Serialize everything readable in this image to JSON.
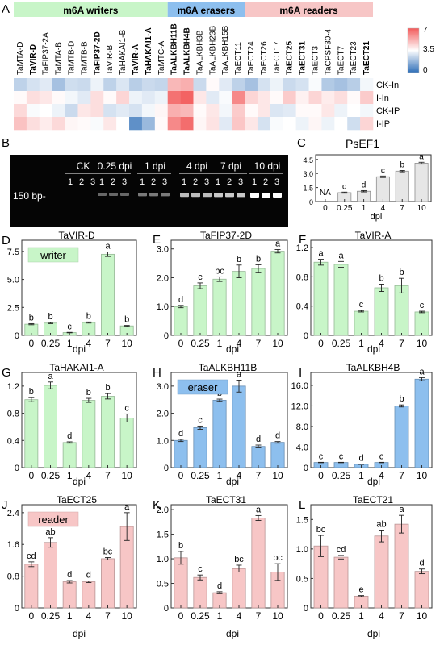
{
  "colors": {
    "writer": "#c8f5c8",
    "eraser": "#8dbfee",
    "reader": "#f7c6c6",
    "neutral": "#e6e6e6",
    "heat_low": "#2f6fb8",
    "heat_mid": "#ffffff",
    "heat_high": "#f25a5a"
  },
  "heatmap": {
    "panel_label": "A",
    "groups": [
      {
        "label": "m6A writers",
        "kind": "writer",
        "start": 0,
        "end": 12
      },
      {
        "label": "m6A erasers",
        "kind": "eraser",
        "start": 12,
        "end": 18
      },
      {
        "label": "m6A readers",
        "kind": "reader",
        "start": 18,
        "end": 28
      }
    ],
    "columns": [
      {
        "name": "TaMTA-D",
        "bold": false
      },
      {
        "name": "TaVIR-D",
        "bold": true
      },
      {
        "name": "TaFIP37-2A",
        "bold": false
      },
      {
        "name": "TaMTA-B",
        "bold": false
      },
      {
        "name": "TaMTB-D",
        "bold": false
      },
      {
        "name": "TaMTB-B",
        "bold": false
      },
      {
        "name": "TaFIP37-2D",
        "bold": true
      },
      {
        "name": "TaVIR-B",
        "bold": false
      },
      {
        "name": "TaHAKAI1-B",
        "bold": false
      },
      {
        "name": "TaVIR-A",
        "bold": true
      },
      {
        "name": "TaHAKAI1-A",
        "bold": true
      },
      {
        "name": "TaMTC-A",
        "bold": false
      },
      {
        "name": "TaALKBH11B",
        "bold": true
      },
      {
        "name": "TaALKBH4B",
        "bold": true
      },
      {
        "name": "TaALKBH3B",
        "bold": false
      },
      {
        "name": "TaALKBH23B",
        "bold": false
      },
      {
        "name": "TaALKBH15B",
        "bold": false
      },
      {
        "name": "TaECT11",
        "bold": false
      },
      {
        "name": "TaECT24",
        "bold": false
      },
      {
        "name": "TaECT26",
        "bold": false
      },
      {
        "name": "TaECT17",
        "bold": false
      },
      {
        "name": "TaECT25",
        "bold": true
      },
      {
        "name": "TaECT31",
        "bold": true
      },
      {
        "name": "TaECT3",
        "bold": false
      },
      {
        "name": "TaCPSF30-4",
        "bold": false
      },
      {
        "name": "TaECT7",
        "bold": false
      },
      {
        "name": "TaECT23",
        "bold": false
      },
      {
        "name": "TaECT21",
        "bold": true
      }
    ],
    "rows": [
      "CK-In",
      "I-In",
      "CK-IP",
      "I-IP"
    ],
    "values": [
      [
        2.4,
        2.8,
        3.0,
        2.0,
        2.7,
        2.6,
        3.2,
        2.4,
        2.9,
        2.3,
        2.6,
        2.5,
        5.0,
        5.2,
        2.6,
        3.6,
        3.0,
        2.4,
        2.0,
        2.8,
        3.2,
        2.6,
        2.8,
        3.4,
        2.2,
        2.0,
        2.3,
        3.3
      ],
      [
        3.6,
        4.2,
        4.0,
        3.6,
        3.3,
        3.0,
        4.2,
        3.6,
        4.4,
        3.2,
        3.0,
        3.2,
        6.5,
        6.8,
        4.0,
        3.0,
        3.4,
        6.0,
        4.4,
        4.0,
        3.6,
        4.6,
        3.8,
        4.4,
        3.9,
        4.2,
        3.6,
        4.6
      ],
      [
        4.3,
        3.4,
        3.5,
        3.2,
        2.6,
        4.0,
        4.2,
        2.8,
        3.0,
        2.8,
        3.3,
        3.7,
        5.2,
        5.0,
        3.6,
        4.0,
        3.3,
        4.6,
        3.6,
        4.0,
        2.9,
        3.0,
        3.6,
        3.6,
        4.0,
        3.2,
        3.5,
        3.3
      ],
      [
        4.8,
        4.2,
        3.9,
        4.3,
        3.7,
        3.6,
        3.4,
        4.0,
        3.5,
        0.8,
        1.8,
        3.6,
        6.0,
        6.6,
        3.7,
        4.1,
        3.0,
        4.7,
        4.0,
        2.8,
        3.4,
        3.5,
        3.2,
        3.7,
        3.2,
        3.5,
        2.7,
        4.4
      ]
    ],
    "scale": {
      "min": 0,
      "mid": 3.5,
      "max": 7,
      "ticks": [
        "7",
        "3.5",
        "0"
      ]
    }
  },
  "gel": {
    "panel_label": "B",
    "groups": [
      {
        "label": "CK",
        "lanes": [
          "1",
          "2",
          "3"
        ],
        "intensity": 0.0
      },
      {
        "label": "0.25 dpi",
        "lanes": [
          "1",
          "2",
          "3"
        ],
        "intensity": 0.35
      },
      {
        "label": "1 dpi",
        "lanes": [
          "1",
          "2",
          "3"
        ],
        "intensity": 0.45
      },
      {
        "label": "4 dpi",
        "lanes": [
          "1",
          "2",
          "3"
        ],
        "intensity": 0.75
      },
      {
        "label": "7 dpi",
        "lanes": [
          "1",
          "2",
          "3"
        ],
        "intensity": 0.8
      },
      {
        "label": "10 dpi",
        "lanes": [
          "1",
          "2",
          "3"
        ],
        "intensity": 1.0
      }
    ],
    "marker_label": "150 bp-"
  },
  "chart_data": [
    {
      "panel": "C",
      "type": "bar",
      "title": "PsEF1",
      "xlabel": "dpi",
      "categories": [
        "0",
        "0.25",
        "1",
        "4",
        "7",
        "10"
      ],
      "values": [
        0,
        0.95,
        1.1,
        2.65,
        3.25,
        4.1
      ],
      "errors": [
        0,
        0.06,
        0.07,
        0.08,
        0.07,
        0.1
      ],
      "letters": [
        "NA",
        "d",
        "d",
        "c",
        "b",
        "a"
      ],
      "ylim": [
        0,
        5
      ],
      "yticks": [
        "0",
        "1.5",
        "3.0",
        "4.5"
      ],
      "ytick_values": [
        0,
        1.5,
        3.0,
        4.5
      ],
      "color": "neutral",
      "tag": ""
    },
    {
      "panel": "D",
      "type": "bar",
      "title": "TaVIR-D",
      "xlabel": "dpi",
      "categories": [
        "0",
        "0.25",
        "1",
        "4",
        "7",
        "10"
      ],
      "values": [
        1.0,
        1.1,
        0.25,
        1.15,
        7.25,
        0.85
      ],
      "errors": [
        0.05,
        0.05,
        0.02,
        0.05,
        0.2,
        0.04
      ],
      "letters": [
        "b",
        "b",
        "c",
        "b",
        "a",
        "b"
      ],
      "ylim": [
        0,
        8.5
      ],
      "yticks": [
        "0",
        "2.5",
        "5.0",
        "7.5"
      ],
      "ytick_values": [
        0,
        2.5,
        5.0,
        7.5
      ],
      "color": "writer",
      "tag": "writer"
    },
    {
      "panel": "E",
      "type": "bar",
      "title": "TaFIP37-2D",
      "xlabel": "dpi",
      "categories": [
        "0",
        "0.25",
        "1",
        "4",
        "7",
        "10"
      ],
      "values": [
        1.0,
        1.72,
        1.95,
        2.22,
        2.32,
        2.92
      ],
      "errors": [
        0.04,
        0.1,
        0.08,
        0.22,
        0.13,
        0.06
      ],
      "letters": [
        "d",
        "c",
        "bc",
        "b",
        "b",
        "a"
      ],
      "ylim": [
        0,
        3.3
      ],
      "yticks": [
        "0",
        "1.0",
        "2.0",
        "3.0"
      ],
      "ytick_values": [
        0,
        1.0,
        2.0,
        3.0
      ],
      "color": "writer",
      "tag": ""
    },
    {
      "panel": "F",
      "type": "bar",
      "title": "TaVIR-A",
      "xlabel": "dpi",
      "categories": [
        "0",
        "0.25",
        "1",
        "4",
        "7",
        "10"
      ],
      "values": [
        1.0,
        0.97,
        0.33,
        0.65,
        0.68,
        0.32
      ],
      "errors": [
        0.04,
        0.04,
        0.01,
        0.05,
        0.1,
        0.01
      ],
      "letters": [
        "a",
        "a",
        "c",
        "b",
        "b",
        "c"
      ],
      "ylim": [
        0,
        1.3
      ],
      "yticks": [
        "0",
        "0.4",
        "0.8",
        "1.2"
      ],
      "ytick_values": [
        0,
        0.4,
        0.8,
        1.2
      ],
      "color": "writer",
      "tag": ""
    },
    {
      "panel": "G",
      "type": "bar",
      "title": "TaHAKAI1-A",
      "xlabel": "dpi",
      "categories": [
        "0",
        "0.25",
        "1",
        "4",
        "7",
        "10"
      ],
      "values": [
        1.0,
        1.21,
        0.37,
        0.99,
        1.05,
        0.73
      ],
      "errors": [
        0.03,
        0.05,
        0.01,
        0.03,
        0.04,
        0.06
      ],
      "letters": [
        "b",
        "a",
        "d",
        "b",
        "b",
        "c"
      ],
      "ylim": [
        0,
        1.4
      ],
      "yticks": [
        "0",
        "0.4",
        "0.8",
        "1.2"
      ],
      "ytick_values": [
        0,
        0.4,
        0.8,
        1.2
      ],
      "color": "writer",
      "tag": ""
    },
    {
      "panel": "H",
      "type": "bar",
      "title": "TaALKBH11B",
      "xlabel": "dpi",
      "categories": [
        "0",
        "0.25",
        "1",
        "4",
        "7",
        "10"
      ],
      "values": [
        1.0,
        1.47,
        2.48,
        3.0,
        0.78,
        0.93
      ],
      "errors": [
        0.04,
        0.06,
        0.04,
        0.22,
        0.05,
        0.03
      ],
      "letters": [
        "d",
        "c",
        "b",
        "a",
        "d",
        "d"
      ],
      "ylim": [
        0,
        3.5
      ],
      "yticks": [
        "0",
        "1.0",
        "2.0",
        "3.0"
      ],
      "ytick_values": [
        0,
        1.0,
        2.0,
        3.0
      ],
      "color": "eraser",
      "tag": "eraser"
    },
    {
      "panel": "I",
      "type": "bar",
      "title": "TaALKBH4B",
      "xlabel": "dpi",
      "categories": [
        "0",
        "0.25",
        "1",
        "4",
        "7",
        "10"
      ],
      "values": [
        1.0,
        1.0,
        0.65,
        1.0,
        12.0,
        17.2
      ],
      "errors": [
        0.04,
        0.04,
        0.03,
        0.04,
        0.2,
        0.3
      ],
      "letters": [
        "c",
        "c",
        "d",
        "c",
        "b",
        "a"
      ],
      "ylim": [
        0,
        18.5
      ],
      "yticks": [
        "0",
        "4.0",
        "8.0",
        "12.0",
        "16.0"
      ],
      "ytick_values": [
        0,
        4.0,
        8.0,
        12.0,
        16.0
      ],
      "color": "eraser",
      "tag": ""
    },
    {
      "panel": "J",
      "type": "bar",
      "title": "TaECT25",
      "xlabel": "dpi",
      "categories": [
        "0",
        "0.25",
        "1",
        "4",
        "7",
        "10"
      ],
      "values": [
        1.1,
        1.65,
        0.66,
        0.66,
        1.24,
        2.05
      ],
      "errors": [
        0.06,
        0.12,
        0.03,
        0.02,
        0.03,
        0.35
      ],
      "letters": [
        "cd",
        "ab",
        "d",
        "d",
        "bc",
        "a"
      ],
      "ylim": [
        0,
        2.6
      ],
      "yticks": [
        "0",
        "0.8",
        "1.6",
        "2.4"
      ],
      "ytick_values": [
        0,
        0.8,
        1.6,
        2.4
      ],
      "color": "reader",
      "tag": "reader"
    },
    {
      "panel": "K",
      "type": "bar",
      "title": "TaECT31",
      "xlabel": "dpi",
      "categories": [
        "0",
        "0.25",
        "1",
        "4",
        "7",
        "10"
      ],
      "values": [
        1.02,
        0.62,
        0.31,
        0.8,
        1.83,
        0.73
      ],
      "errors": [
        0.13,
        0.05,
        0.02,
        0.07,
        0.05,
        0.17
      ],
      "letters": [
        "b",
        "c",
        "d",
        "bc",
        "a",
        "bc"
      ],
      "ylim": [
        0,
        2.1
      ],
      "yticks": [
        "0",
        "0.5",
        "1.0",
        "1.5",
        "2.0"
      ],
      "ytick_values": [
        0,
        0.5,
        1.0,
        1.5,
        2.0
      ],
      "color": "reader",
      "tag": ""
    },
    {
      "panel": "L",
      "type": "bar",
      "title": "TaECT21",
      "xlabel": "dpi",
      "categories": [
        "0",
        "0.25",
        "1",
        "4",
        "7",
        "10"
      ],
      "values": [
        1.05,
        0.86,
        0.2,
        1.22,
        1.42,
        0.62
      ],
      "errors": [
        0.18,
        0.03,
        0.01,
        0.1,
        0.15,
        0.04
      ],
      "letters": [
        "bc",
        "cd",
        "e",
        "ab",
        "a",
        "d"
      ],
      "ylim": [
        0,
        1.75
      ],
      "yticks": [
        "0",
        "0.5",
        "1.0",
        "1.5"
      ],
      "ytick_values": [
        0,
        0.5,
        1.0,
        1.5
      ],
      "color": "reader",
      "tag": ""
    }
  ]
}
